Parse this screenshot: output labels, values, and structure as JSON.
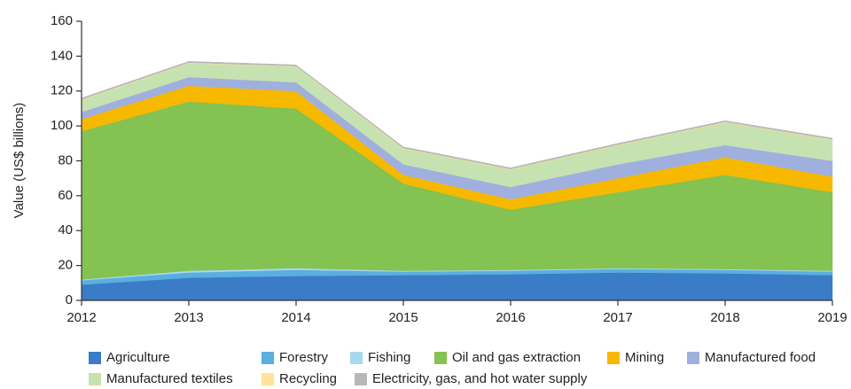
{
  "chart_data": {
    "type": "stacked_area",
    "y_label": "Value (US$ billions)",
    "categories": [
      "2012",
      "2013",
      "2014",
      "2015",
      "2016",
      "2017",
      "2018",
      "2019"
    ],
    "ylim": [
      0,
      160
    ],
    "yticks": [
      0,
      20,
      40,
      60,
      80,
      100,
      120,
      140,
      160
    ],
    "series": [
      {
        "name": "Agriculture",
        "color": "#3a7cc5",
        "values": [
          9,
          13,
          14,
          14.5,
          15,
          16,
          15.5,
          14.5
        ]
      },
      {
        "name": "Forestry",
        "color": "#5aaee0",
        "values": [
          2.5,
          3,
          3.5,
          2,
          2,
          2,
          2,
          2
        ]
      },
      {
        "name": "Fishing",
        "color": "#a8d8f0",
        "values": [
          0.5,
          1,
          1,
          0.5,
          0.5,
          0.5,
          0.5,
          0.5
        ]
      },
      {
        "name": "Oil and gas extraction",
        "color": "#84c252",
        "values": [
          85,
          97,
          91.5,
          50,
          34.5,
          43.5,
          54,
          45
        ]
      },
      {
        "name": "Mining",
        "color": "#f7b800",
        "values": [
          7,
          9,
          10,
          5,
          6,
          8,
          10,
          9
        ]
      },
      {
        "name": "Manufactured food",
        "color": "#9fb0de",
        "values": [
          4,
          5,
          5,
          6,
          7,
          8,
          7,
          9
        ]
      },
      {
        "name": "Manufactured textiles",
        "color": "#c6e2b0",
        "values": [
          7,
          8,
          9,
          9,
          10,
          11,
          13,
          12
        ]
      },
      {
        "name": "Recycling",
        "color": "#fde49a",
        "values": [
          0.3,
          0.3,
          0.3,
          0.3,
          0.3,
          0.3,
          0.3,
          0.3
        ]
      },
      {
        "name": "Electricity, gas, and hot water supply",
        "color": "#b8b8b8",
        "values": [
          0.7,
          0.7,
          0.7,
          0.7,
          0.7,
          0.7,
          0.7,
          0.7
        ]
      }
    ]
  }
}
